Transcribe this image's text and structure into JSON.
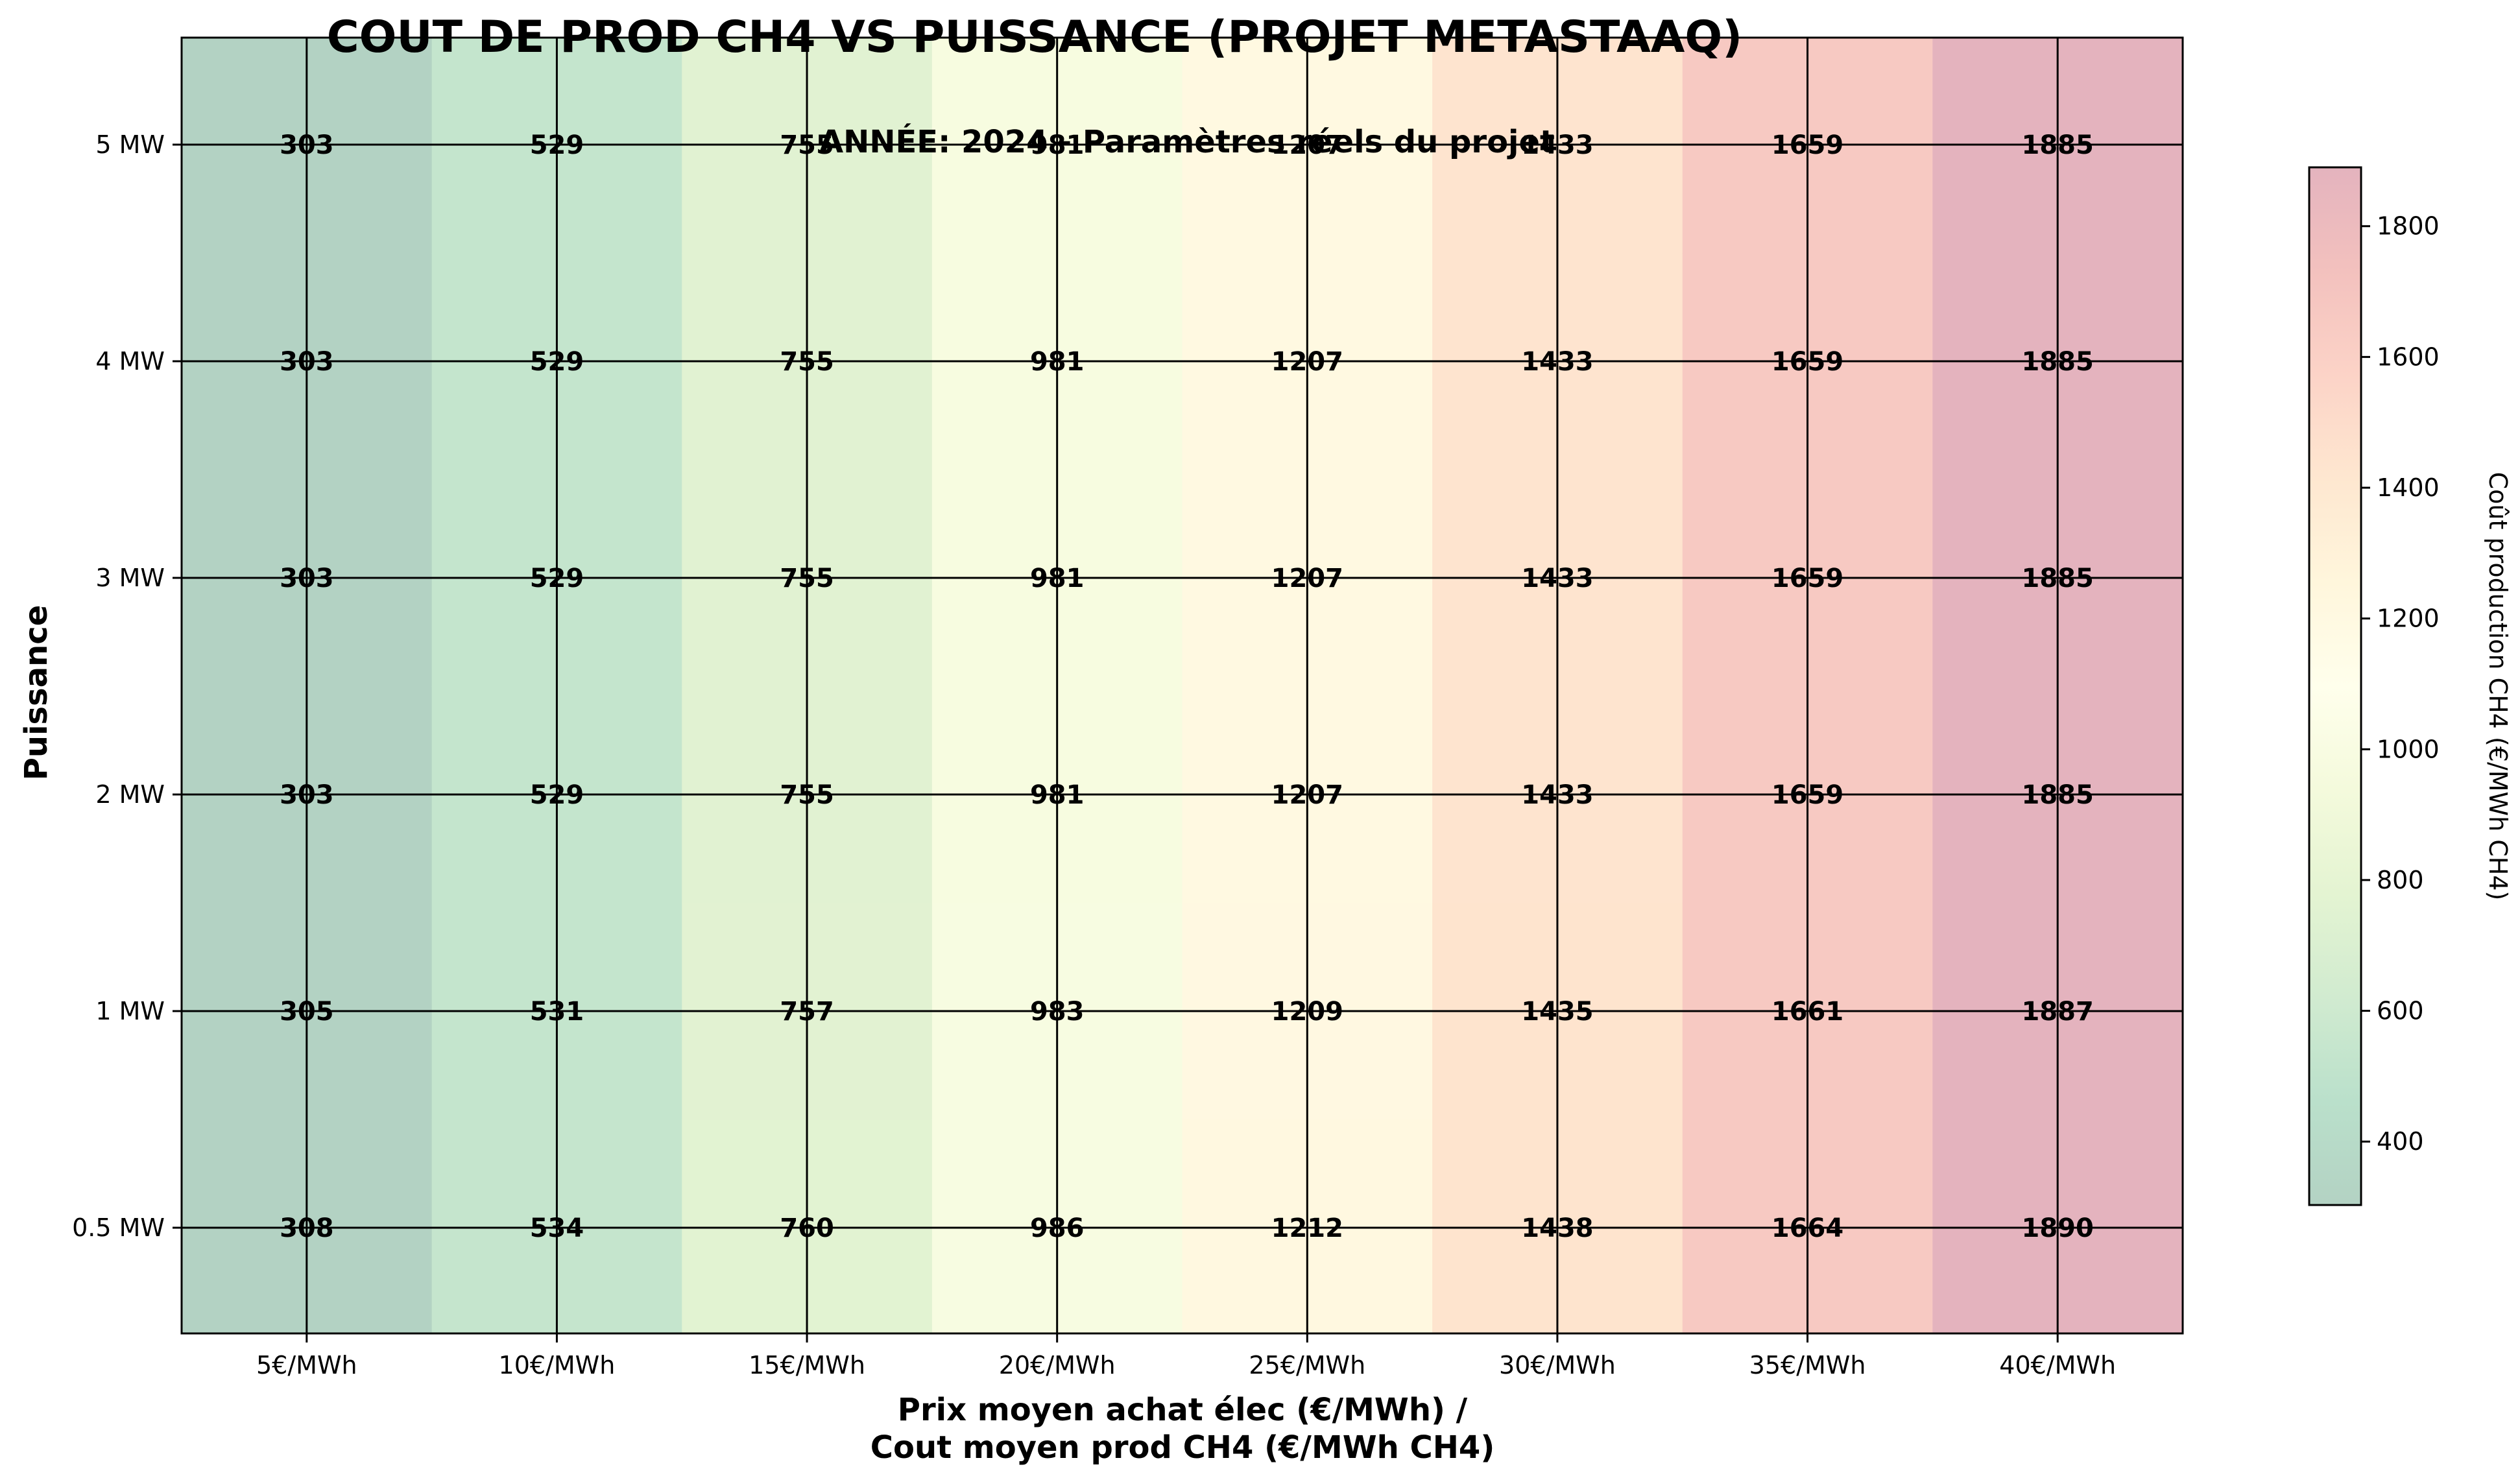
{
  "chart_data": {
    "type": "heatmap",
    "title": "COUT DE PROD CH4 VS PUISSANCE (PROJET METASTAAQ)",
    "subtitle": "ANNÉE: 2024 - Paramètres réels du projet",
    "xlabel_line1": "Prix moyen achat élec (€/MWh) /",
    "xlabel_line2": "Cout moyen prod CH4 (€/MWh CH4)",
    "ylabel": "Puissance",
    "x_categories": [
      "5€/MWh",
      "10€/MWh",
      "15€/MWh",
      "20€/MWh",
      "25€/MWh",
      "30€/MWh",
      "35€/MWh",
      "40€/MWh"
    ],
    "y_categories": [
      "0.5 MW",
      "1 MW",
      "2 MW",
      "3 MW",
      "4 MW",
      "5 MW"
    ],
    "values": [
      [
        308,
        534,
        760,
        986,
        1212,
        1438,
        1664,
        1890
      ],
      [
        305,
        531,
        757,
        983,
        1209,
        1435,
        1661,
        1887
      ],
      [
        303,
        529,
        755,
        981,
        1207,
        1433,
        1659,
        1885
      ],
      [
        303,
        529,
        755,
        981,
        1207,
        1433,
        1659,
        1885
      ],
      [
        303,
        529,
        755,
        981,
        1207,
        1433,
        1659,
        1885
      ],
      [
        303,
        529,
        755,
        981,
        1207,
        1433,
        1659,
        1885
      ]
    ],
    "colorbar": {
      "label": "Coût production CH4 (€/MWh CH4)",
      "range": [
        303,
        1890
      ],
      "ticks": [
        400,
        600,
        800,
        1000,
        1200,
        1400,
        1600,
        1800
      ],
      "colormap": [
        "#006837",
        "#1a9850",
        "#66bd63",
        "#a6d96a",
        "#d9ef8b",
        "#ffffbf",
        "#fee08b",
        "#fdae61",
        "#f46d43",
        "#d73027",
        "#a50026"
      ],
      "alpha": 0.3
    },
    "grid": true
  }
}
